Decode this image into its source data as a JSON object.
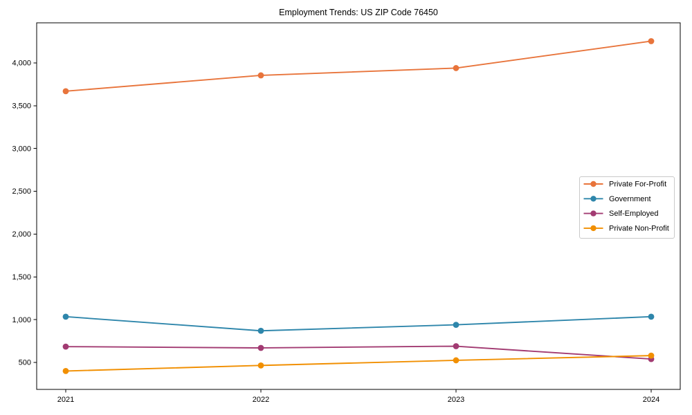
{
  "page": {
    "background": "#ffffff",
    "axis_color": "#000000",
    "text_color": "#000000"
  },
  "chart_data": {
    "type": "line",
    "title": "Employment Trends: US ZIP Code 76450",
    "xlabel": "",
    "ylabel": "",
    "x": [
      "2021",
      "2022",
      "2023",
      "2024"
    ],
    "series": [
      {
        "name": "Private For-Profit",
        "color": "#e8743b",
        "values": [
          3670,
          3855,
          3940,
          4255
        ]
      },
      {
        "name": "Government",
        "color": "#2e86ab",
        "values": [
          1035,
          870,
          940,
          1035
        ]
      },
      {
        "name": "Self-Employed",
        "color": "#a23b72",
        "values": [
          685,
          670,
          690,
          540
        ]
      },
      {
        "name": "Private Non-Profit",
        "color": "#f18f01",
        "values": [
          400,
          465,
          525,
          580
        ]
      }
    ],
    "ylim": [
      185,
      4469
    ],
    "yticks": [
      500,
      1000,
      1500,
      2000,
      2500,
      3000,
      3500,
      4000
    ],
    "ytick_labels": [
      "500",
      "1,000",
      "1,500",
      "2,000",
      "2,500",
      "3,000",
      "3,500",
      "4,000"
    ],
    "xtick_labels": [
      "2021",
      "2022",
      "2023",
      "2024"
    ],
    "grid": false,
    "marker": "circle",
    "line_width": 1.9,
    "marker_radius": 4.4,
    "legend": {
      "position": "center-right",
      "background": "#ffffff",
      "border_color": "#c9c9c9"
    }
  }
}
